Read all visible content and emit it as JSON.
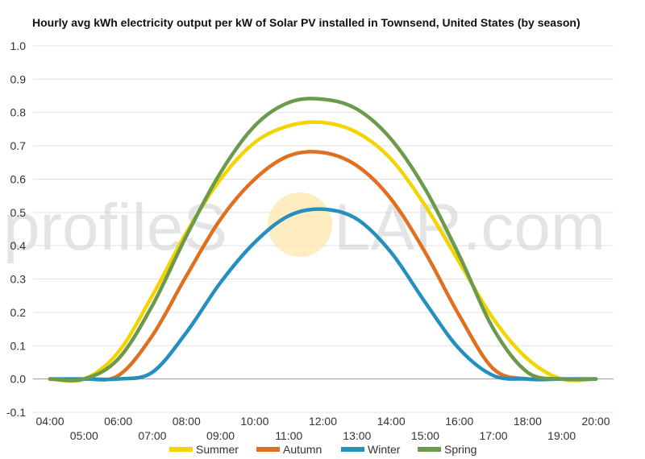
{
  "chart_data": {
    "type": "line",
    "title": "Hourly avg kWh electricity output per kW of Solar PV installed in Townsend, United States (by season)",
    "xlabel": "",
    "ylabel": "",
    "ylim": [
      -0.1,
      1.0
    ],
    "y_ticks": [
      "-0.1",
      "0.0",
      "0.1",
      "0.2",
      "0.3",
      "0.4",
      "0.5",
      "0.6",
      "0.7",
      "0.8",
      "0.9",
      "1.0"
    ],
    "x": [
      "04:00",
      "05:00",
      "06:00",
      "07:00",
      "08:00",
      "09:00",
      "10:00",
      "11:00",
      "12:00",
      "13:00",
      "14:00",
      "15:00",
      "16:00",
      "17:00",
      "18:00",
      "19:00",
      "20:00"
    ],
    "grid": true,
    "legend_position": "bottom",
    "series": [
      {
        "name": "Summer",
        "color": "#f4d400",
        "values": [
          0.0,
          0.0,
          0.08,
          0.25,
          0.44,
          0.6,
          0.71,
          0.76,
          0.77,
          0.74,
          0.66,
          0.52,
          0.35,
          0.18,
          0.06,
          0.0,
          0.0
        ]
      },
      {
        "name": "Autumn",
        "color": "#e07020",
        "values": [
          0.0,
          0.0,
          0.01,
          0.13,
          0.31,
          0.48,
          0.6,
          0.67,
          0.68,
          0.64,
          0.54,
          0.38,
          0.19,
          0.03,
          0.0,
          0.0,
          0.0
        ]
      },
      {
        "name": "Winter",
        "color": "#2590c0",
        "values": [
          0.0,
          0.0,
          0.0,
          0.02,
          0.14,
          0.29,
          0.41,
          0.49,
          0.51,
          0.48,
          0.38,
          0.23,
          0.09,
          0.01,
          0.0,
          0.0,
          0.0
        ]
      },
      {
        "name": "Spring",
        "color": "#6b9a4c",
        "values": [
          0.0,
          0.0,
          0.06,
          0.22,
          0.43,
          0.62,
          0.76,
          0.83,
          0.84,
          0.81,
          0.72,
          0.57,
          0.37,
          0.15,
          0.02,
          0.0,
          0.0
        ]
      }
    ]
  },
  "watermark": {
    "text_left": "profileS",
    "text_right": "LAR.com",
    "sun_color": "#fde9b0"
  }
}
